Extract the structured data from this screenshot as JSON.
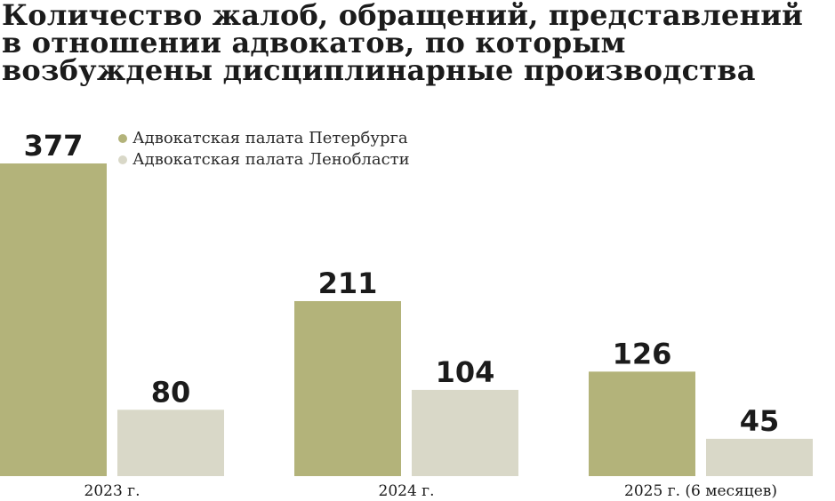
{
  "title": "Количество жалоб, обращений, представлений в отношении адвокатов, по которым возбуждены дисциплинарные производства",
  "colors": {
    "spb": "#b3b37a",
    "lo": "#d9d8c8"
  },
  "chart_data": {
    "type": "bar",
    "title": "Количество жалоб, обращений, представлений в отношении адвокатов, по которым возбуждены дисциплинарные производства",
    "categories": [
      "2023 г.",
      "2024 г.",
      "2025 г. (6 месяцев)"
    ],
    "series": [
      {
        "name": "Адвокатская палата Петербурга",
        "values": [
          377,
          211,
          126
        ]
      },
      {
        "name": "Адвокатская палата Ленобласти",
        "values": [
          80,
          104,
          45
        ]
      }
    ],
    "legend": "top-left",
    "grid": false,
    "ylim": [
      0,
      377
    ]
  }
}
